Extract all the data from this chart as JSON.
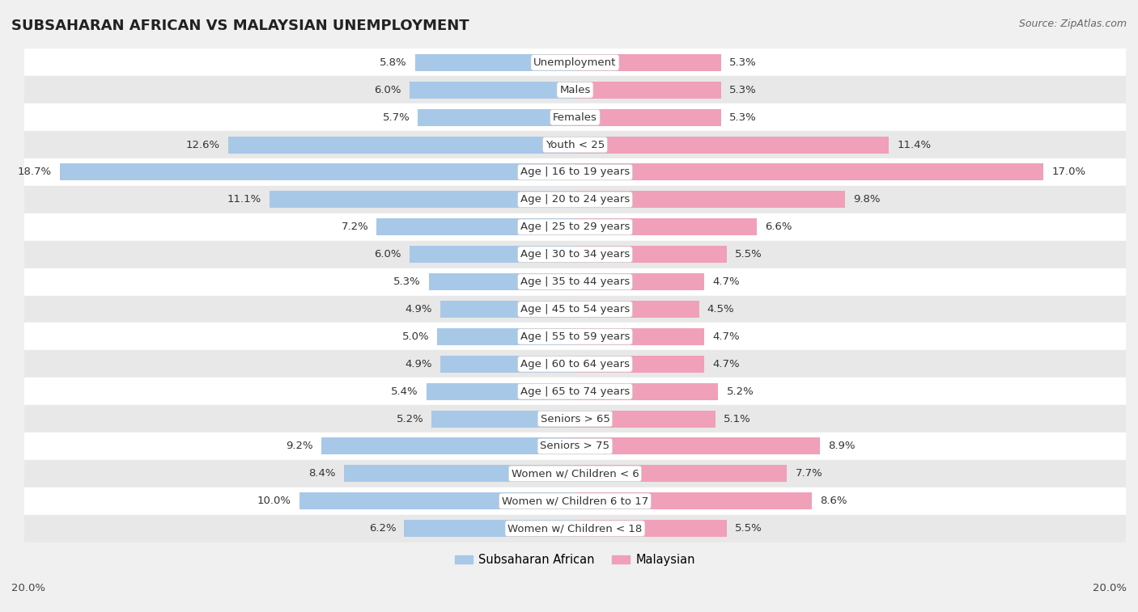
{
  "title": "SUBSAHARAN AFRICAN VS MALAYSIAN UNEMPLOYMENT",
  "source": "Source: ZipAtlas.com",
  "categories": [
    "Unemployment",
    "Males",
    "Females",
    "Youth < 25",
    "Age | 16 to 19 years",
    "Age | 20 to 24 years",
    "Age | 25 to 29 years",
    "Age | 30 to 34 years",
    "Age | 35 to 44 years",
    "Age | 45 to 54 years",
    "Age | 55 to 59 years",
    "Age | 60 to 64 years",
    "Age | 65 to 74 years",
    "Seniors > 65",
    "Seniors > 75",
    "Women w/ Children < 6",
    "Women w/ Children 6 to 17",
    "Women w/ Children < 18"
  ],
  "subsaharan": [
    5.8,
    6.0,
    5.7,
    12.6,
    18.7,
    11.1,
    7.2,
    6.0,
    5.3,
    4.9,
    5.0,
    4.9,
    5.4,
    5.2,
    9.2,
    8.4,
    10.0,
    6.2
  ],
  "malaysian": [
    5.3,
    5.3,
    5.3,
    11.4,
    17.0,
    9.8,
    6.6,
    5.5,
    4.7,
    4.5,
    4.7,
    4.7,
    5.2,
    5.1,
    8.9,
    7.7,
    8.6,
    5.5
  ],
  "subsaharan_color": "#A8C8E8",
  "malaysian_color": "#F0A0B8",
  "subsaharan_label": "Subsaharan African",
  "malaysian_label": "Malaysian",
  "axis_max": 20.0,
  "bar_height": 0.62,
  "background_color": "#f0f0f0",
  "row_bg_white": "#ffffff",
  "row_bg_gray": "#e8e8e8",
  "label_fontsize": 9.5,
  "value_fontsize": 9.5,
  "title_fontsize": 13,
  "source_fontsize": 9.0
}
